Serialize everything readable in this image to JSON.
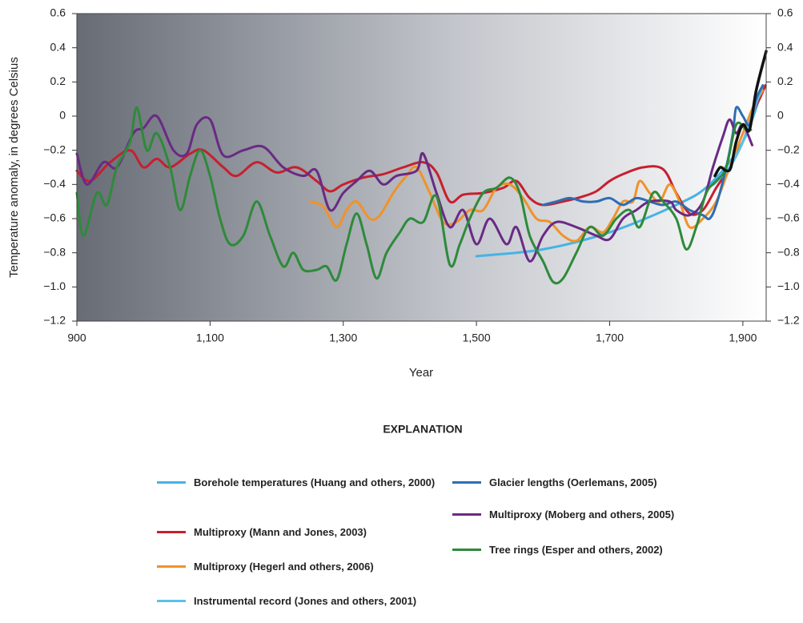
{
  "chart_data": {
    "type": "line",
    "y_label": "Temperature anomaly, in degrees Celsius",
    "x_label": "Year",
    "legend_title": "EXPLANATION",
    "xlim": [
      900,
      1935
    ],
    "xticks": [
      900,
      {
        "value": 1100,
        "label": "1,100"
      },
      {
        "value": 1300,
        "label": "1,300"
      },
      {
        "value": 1500,
        "label": "1,500"
      },
      {
        "value": 1700,
        "label": "1,700"
      },
      {
        "value": 1900,
        "label": "1,900"
      }
    ],
    "ylim": [
      -1.2,
      0.6
    ],
    "yticks": [
      0.6,
      0.4,
      0.2,
      0,
      {
        "value": -0.2,
        "label": "−0.2"
      },
      {
        "value": -0.4,
        "label": "−0.4"
      },
      {
        "value": -0.6,
        "label": "−0.6"
      },
      {
        "value": -0.8,
        "label": "−0.8"
      },
      {
        "value": -1.0,
        "label": "−1.0"
      },
      {
        "value": -1.2,
        "label": "−1.2"
      }
    ],
    "y2lim": [
      -1.2,
      0.6
    ],
    "y2ticks": [
      0.6,
      0.4,
      0.2,
      0,
      {
        "value": -0.2,
        "label": "−0.2"
      },
      {
        "value": -0.4,
        "label": "−0.4"
      },
      {
        "value": -0.6,
        "label": "−0.6"
      },
      {
        "value": -0.8,
        "label": "−0.8"
      },
      {
        "value": -1.0,
        "label": "−1.0"
      },
      {
        "value": -1.2,
        "label": "−1.2"
      }
    ],
    "grid": false,
    "series": [
      {
        "name": "Borehole temperatures (Huang and others, 2000)",
        "color": "#45b3e6",
        "x": [
          1500,
          1600,
          1700,
          1800,
          1850,
          1900,
          1930
        ],
        "values": [
          -0.82,
          -0.78,
          -0.68,
          -0.52,
          -0.4,
          -0.15,
          0.17
        ]
      },
      {
        "name": "Multiproxy (Mann and Jones, 2003)",
        "color": "#c6202f",
        "x": [
          900,
          920,
          950,
          980,
          1000,
          1020,
          1040,
          1070,
          1090,
          1120,
          1140,
          1170,
          1200,
          1230,
          1260,
          1280,
          1300,
          1330,
          1360,
          1390,
          1420,
          1440,
          1460,
          1480,
          1510,
          1540,
          1560,
          1580,
          1600,
          1630,
          1660,
          1680,
          1700,
          1720,
          1750,
          1780,
          1800,
          1820,
          1840,
          1860,
          1880,
          1900,
          1915,
          1925,
          1934
        ],
        "values": [
          -0.32,
          -0.38,
          -0.27,
          -0.2,
          -0.3,
          -0.25,
          -0.3,
          -0.22,
          -0.2,
          -0.3,
          -0.35,
          -0.27,
          -0.33,
          -0.3,
          -0.38,
          -0.44,
          -0.4,
          -0.36,
          -0.34,
          -0.3,
          -0.27,
          -0.33,
          -0.5,
          -0.46,
          -0.45,
          -0.42,
          -0.38,
          -0.48,
          -0.52,
          -0.5,
          -0.47,
          -0.44,
          -0.38,
          -0.34,
          -0.3,
          -0.31,
          -0.45,
          -0.57,
          -0.55,
          -0.42,
          -0.3,
          -0.15,
          0.02,
          0.1,
          0.18
        ]
      },
      {
        "name": "Multiproxy (Hegerl and others, 2006)",
        "color": "#f0922a",
        "x": [
          1250,
          1270,
          1290,
          1305,
          1320,
          1340,
          1355,
          1375,
          1395,
          1410,
          1430,
          1450,
          1470,
          1490,
          1510,
          1530,
          1550,
          1570,
          1590,
          1610,
          1630,
          1650,
          1670,
          1690,
          1705,
          1720,
          1735,
          1745,
          1760,
          1775,
          1790,
          1805,
          1820,
          1840,
          1860,
          1880,
          1900,
          1915,
          1930
        ],
        "values": [
          -0.5,
          -0.53,
          -0.65,
          -0.55,
          -0.5,
          -0.6,
          -0.58,
          -0.45,
          -0.35,
          -0.3,
          -0.45,
          -0.62,
          -0.62,
          -0.55,
          -0.55,
          -0.42,
          -0.4,
          -0.48,
          -0.6,
          -0.62,
          -0.7,
          -0.73,
          -0.65,
          -0.68,
          -0.6,
          -0.5,
          -0.5,
          -0.38,
          -0.45,
          -0.5,
          -0.4,
          -0.5,
          -0.65,
          -0.6,
          -0.5,
          -0.3,
          -0.1,
          0.05,
          0.15
        ]
      },
      {
        "name": "Instrumental record (Jones and others, 2001)",
        "color": "#5bc0eb",
        "x": [
          1856,
          1880,
          1900,
          1915,
          1930
        ],
        "values": [
          -0.4,
          -0.3,
          -0.15,
          0.02,
          0.18
        ]
      },
      {
        "name": "Glacier lengths (Oerlemans, 2005)",
        "color": "#2e6db4",
        "x": [
          1600,
          1620,
          1640,
          1660,
          1680,
          1700,
          1720,
          1740,
          1760,
          1780,
          1800,
          1820,
          1840,
          1850,
          1860,
          1875,
          1885,
          1890,
          1900,
          1910,
          1920,
          1930
        ],
        "values": [
          -0.52,
          -0.5,
          -0.48,
          -0.5,
          -0.5,
          -0.48,
          -0.52,
          -0.48,
          -0.5,
          -0.52,
          -0.5,
          -0.55,
          -0.58,
          -0.6,
          -0.52,
          -0.3,
          -0.1,
          0.05,
          0.0,
          -0.05,
          0.1,
          0.18
        ]
      },
      {
        "name": "Multiproxy (Moberg and others, 2005)",
        "color": "#6a2a84",
        "x": [
          900,
          915,
          940,
          960,
          985,
          1000,
          1020,
          1045,
          1065,
          1080,
          1100,
          1120,
          1150,
          1180,
          1210,
          1240,
          1260,
          1280,
          1300,
          1320,
          1340,
          1360,
          1380,
          1410,
          1420,
          1440,
          1460,
          1480,
          1500,
          1520,
          1545,
          1560,
          1580,
          1600,
          1620,
          1650,
          1680,
          1700,
          1720,
          1740,
          1760,
          1790,
          1800,
          1820,
          1840,
          1855,
          1870,
          1880,
          1890,
          1900,
          1914
        ],
        "values": [
          -0.22,
          -0.4,
          -0.27,
          -0.3,
          -0.1,
          -0.07,
          0.0,
          -0.2,
          -0.22,
          -0.05,
          -0.02,
          -0.23,
          -0.2,
          -0.18,
          -0.3,
          -0.35,
          -0.32,
          -0.55,
          -0.45,
          -0.38,
          -0.32,
          -0.4,
          -0.35,
          -0.32,
          -0.22,
          -0.45,
          -0.65,
          -0.55,
          -0.75,
          -0.6,
          -0.75,
          -0.65,
          -0.85,
          -0.7,
          -0.62,
          -0.65,
          -0.7,
          -0.72,
          -0.6,
          -0.55,
          -0.5,
          -0.5,
          -0.55,
          -0.58,
          -0.5,
          -0.3,
          -0.12,
          -0.02,
          -0.1,
          -0.05,
          -0.17
        ]
      },
      {
        "name": "Tree rings (Esper and others, 2002)",
        "color": "#2e8a3a",
        "x": [
          900,
          910,
          930,
          945,
          960,
          980,
          990,
          1005,
          1020,
          1040,
          1055,
          1070,
          1085,
          1100,
          1115,
          1130,
          1150,
          1170,
          1190,
          1210,
          1225,
          1240,
          1260,
          1275,
          1290,
          1305,
          1320,
          1335,
          1350,
          1365,
          1385,
          1400,
          1420,
          1440,
          1460,
          1475,
          1490,
          1510,
          1530,
          1550,
          1565,
          1580,
          1600,
          1615,
          1630,
          1650,
          1670,
          1690,
          1710,
          1730,
          1745,
          1765,
          1780,
          1800,
          1815,
          1830,
          1845,
          1860,
          1875,
          1890,
          1905,
          1912
        ],
        "values": [
          -0.45,
          -0.7,
          -0.45,
          -0.52,
          -0.3,
          -0.15,
          0.05,
          -0.2,
          -0.1,
          -0.3,
          -0.55,
          -0.35,
          -0.2,
          -0.35,
          -0.6,
          -0.75,
          -0.7,
          -0.5,
          -0.7,
          -0.88,
          -0.8,
          -0.9,
          -0.9,
          -0.88,
          -0.96,
          -0.75,
          -0.57,
          -0.75,
          -0.95,
          -0.8,
          -0.68,
          -0.6,
          -0.62,
          -0.47,
          -0.87,
          -0.75,
          -0.6,
          -0.45,
          -0.42,
          -0.36,
          -0.45,
          -0.7,
          -0.85,
          -0.97,
          -0.95,
          -0.8,
          -0.65,
          -0.7,
          -0.6,
          -0.55,
          -0.65,
          -0.45,
          -0.5,
          -0.6,
          -0.78,
          -0.65,
          -0.45,
          -0.38,
          -0.3,
          -0.05,
          -0.08,
          -0.08
        ]
      },
      {
        "color": "#111111",
        "x": [
          1858,
          1866,
          1875,
          1882,
          1890,
          1900,
          1910,
          1920,
          1935
        ],
        "values": [
          -0.35,
          -0.3,
          -0.32,
          -0.3,
          -0.15,
          -0.05,
          -0.08,
          0.15,
          0.38
        ]
      }
    ]
  }
}
